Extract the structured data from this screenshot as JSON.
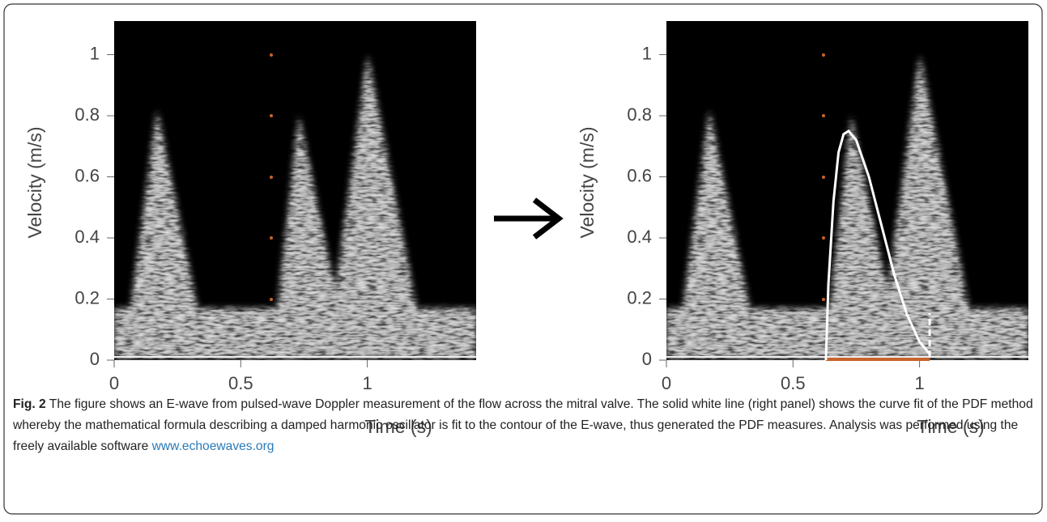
{
  "chart_data": [
    {
      "type": "spectrogram",
      "xlabel": "Time (s)",
      "ylabel": "Velocity (m/s)",
      "xlim": [
        0,
        1.43
      ],
      "ylim": [
        0,
        1.11
      ],
      "xticks": [
        0,
        0.5,
        1
      ],
      "yticks": [
        0,
        0.2,
        0.4,
        0.6,
        0.8,
        1
      ]
    },
    {
      "type": "spectrogram",
      "xlabel": "Time (s)",
      "ylabel": "Velocity (m/s)",
      "xlim": [
        0,
        1.43
      ],
      "ylim": [
        0,
        1.11
      ],
      "xticks": [
        0,
        0.5,
        1
      ],
      "yticks": [
        0,
        0.2,
        0.4,
        0.6,
        0.8,
        1
      ],
      "fit": {
        "color": "#ffffff",
        "x": [
          0.63,
          0.64,
          0.66,
          0.68,
          0.7,
          0.72,
          0.75,
          0.8,
          0.85,
          0.9,
          0.95,
          1.0,
          1.04
        ],
        "values": [
          0,
          0.25,
          0.52,
          0.68,
          0.74,
          0.75,
          0.72,
          0.6,
          0.44,
          0.28,
          0.15,
          0.06,
          0.02
        ]
      }
    }
  ],
  "caption": {
    "label": "Fig. 2",
    "text": "The figure shows an E-wave from pulsed-wave Doppler measurement of the flow across the mitral valve. The solid white line (right panel) shows the curve fit of the PDF method whereby the mathematical formula describing a damped harmonic oscillator is fit to the contour of the E-wave, thus generated the PDF measures. Analysis was performed using the freely available software",
    "link": "www.echoewaves.org"
  }
}
